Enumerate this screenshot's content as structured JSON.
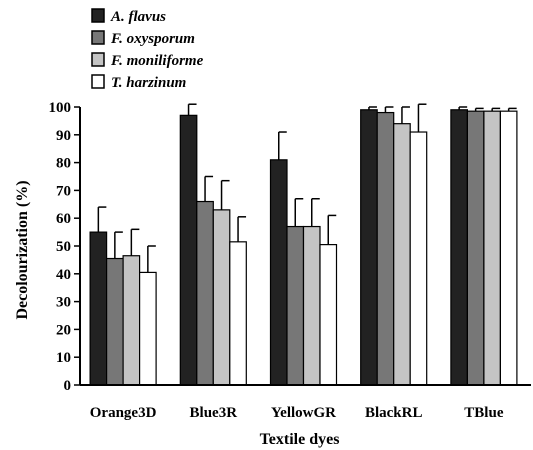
{
  "chart_data": {
    "type": "bar",
    "title": "",
    "xlabel": "Textile dyes",
    "ylabel": "Decolourization (%)",
    "ylim": [
      0,
      100
    ],
    "yticks": [
      0,
      10,
      20,
      30,
      40,
      50,
      60,
      70,
      80,
      90,
      100
    ],
    "grid": false,
    "legend_position": "top-left",
    "categories": [
      "Orange3D",
      "Blue3R",
      "YellowGR",
      "BlackRL",
      "TBlue"
    ],
    "series": [
      {
        "name": "A. flavus",
        "color": "#222222",
        "values": [
          55,
          97,
          81,
          99,
          99
        ],
        "errors": [
          9,
          4,
          10,
          1,
          1
        ]
      },
      {
        "name": "F. oxysporum",
        "color": "#777777",
        "values": [
          45.5,
          66,
          57,
          98,
          98.5
        ],
        "errors": [
          9.5,
          9,
          10,
          2,
          1
        ]
      },
      {
        "name": "F. moniliforme",
        "color": "#c4c4c4",
        "values": [
          46.5,
          63,
          57,
          94,
          98.5
        ],
        "errors": [
          9.5,
          10.5,
          10,
          6,
          1
        ]
      },
      {
        "name": "T. harzinum",
        "color": "#ffffff",
        "values": [
          40.5,
          51.5,
          50.5,
          91,
          98.5
        ],
        "errors": [
          9.5,
          9,
          10.5,
          10,
          1
        ]
      }
    ]
  }
}
